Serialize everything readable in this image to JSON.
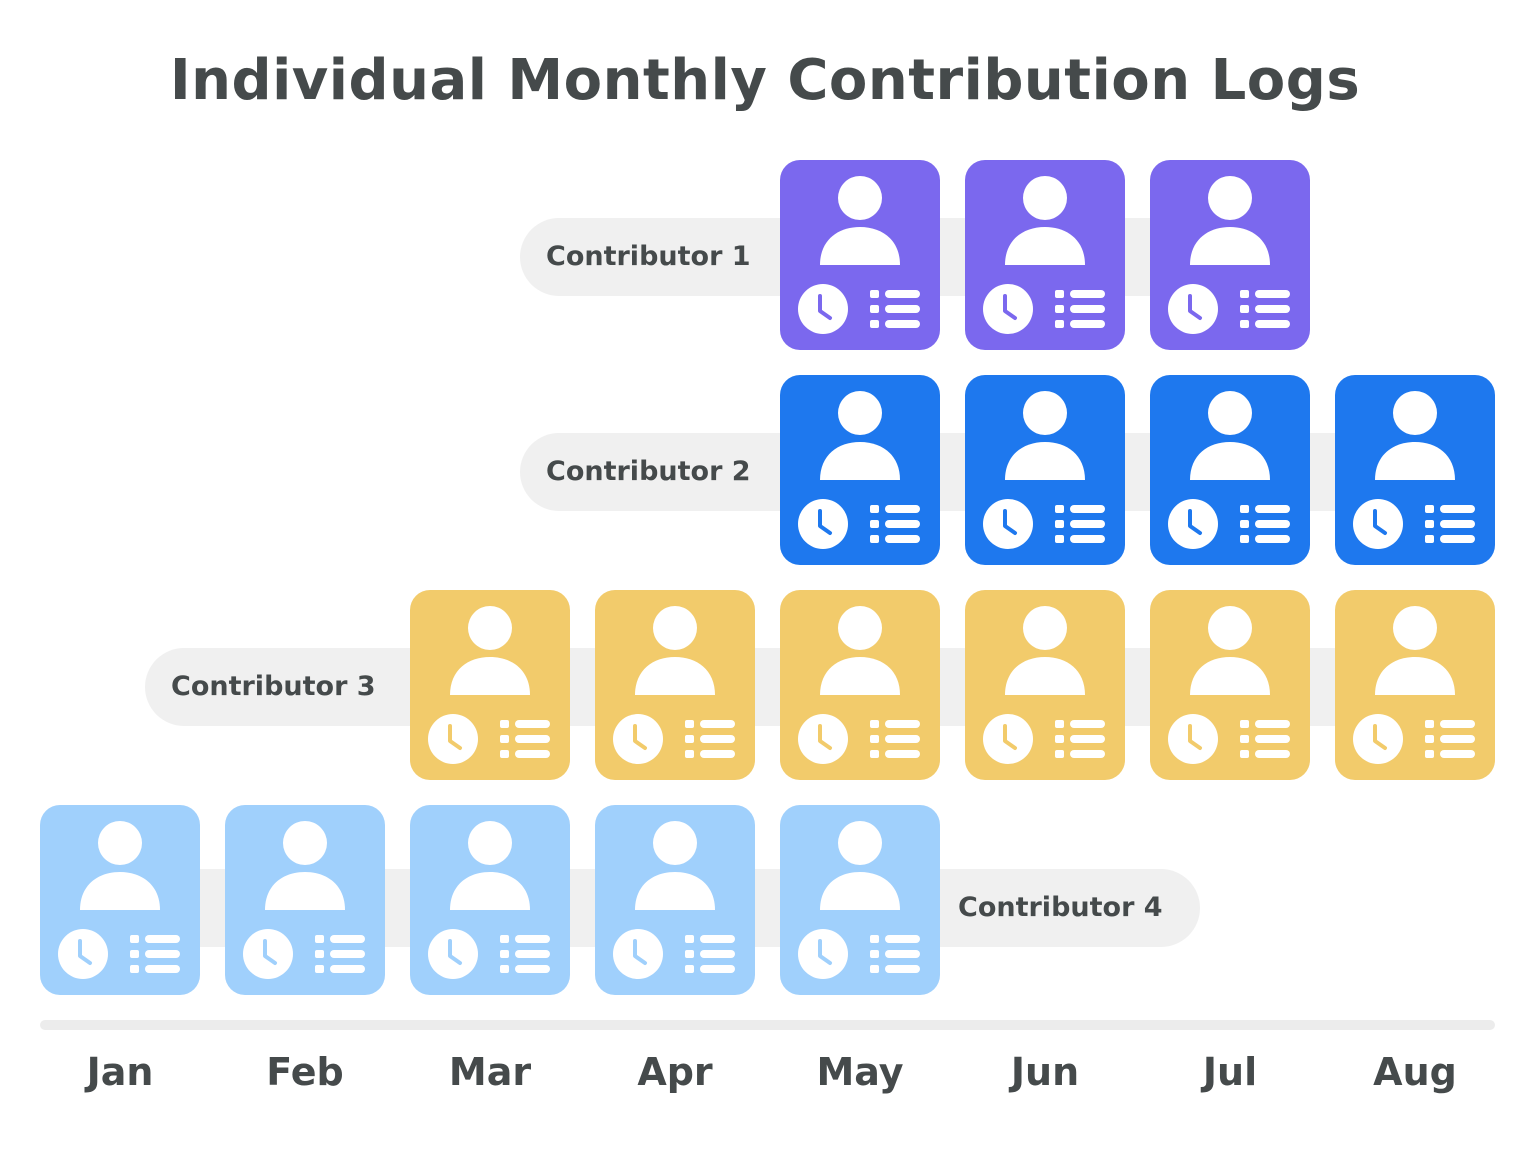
{
  "title": "Individual Monthly Contribution Logs",
  "months": [
    "Jan",
    "Feb",
    "Mar",
    "Apr",
    "May",
    "Jun",
    "Jul",
    "Aug"
  ],
  "contributors": [
    {
      "label": "Contributor 1",
      "color": "#7b68ee",
      "months": [
        "May",
        "Jun",
        "Jul"
      ],
      "label_position": "left"
    },
    {
      "label": "Contributor 2",
      "color": "#1e78ee",
      "months": [
        "May",
        "Jun",
        "Jul",
        "Aug"
      ],
      "label_position": "left"
    },
    {
      "label": "Contributor 3",
      "color": "#f2cb6b",
      "months": [
        "Mar",
        "Apr",
        "May",
        "Jun",
        "Jul",
        "Aug"
      ],
      "label_position": "left"
    },
    {
      "label": "Contributor 4",
      "color": "#a0d0fc",
      "months": [
        "Jan",
        "Feb",
        "Mar",
        "Apr",
        "May"
      ],
      "label_position": "right"
    }
  ],
  "card_icons": [
    "user-icon",
    "clock-icon",
    "list-icon"
  ]
}
